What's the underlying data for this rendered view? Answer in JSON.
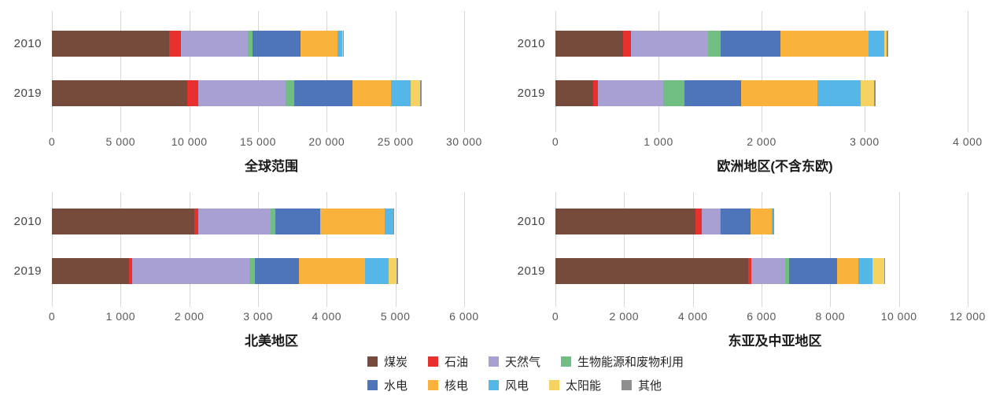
{
  "series": [
    {
      "label": "煤炭",
      "color": "#774B3B"
    },
    {
      "label": "石油",
      "color": "#E8312E"
    },
    {
      "label": "天然气",
      "color": "#A89FD3"
    },
    {
      "label": "生物能源和废物利用",
      "color": "#71BE82"
    },
    {
      "label": "水电",
      "color": "#4E74B9"
    },
    {
      "label": "核电",
      "color": "#F9B23C"
    },
    {
      "label": "风电",
      "color": "#55B6E8"
    },
    {
      "label": "太阳能",
      "color": "#F5D363"
    },
    {
      "label": "其他",
      "color": "#8F8F8F"
    }
  ],
  "legend": {
    "rows": [
      [
        0,
        1,
        2,
        3
      ],
      [
        4,
        5,
        6,
        7,
        8
      ]
    ]
  },
  "chart_data": [
    {
      "type": "bar",
      "orientation": "horizontal-stacked",
      "title": "全球范围",
      "categories": [
        "2010",
        "2019"
      ],
      "xlim": [
        0,
        30000
      ],
      "x_tick_step": 5000,
      "x_tick_labels": [
        "0",
        "5 000",
        "10 000",
        "15 000",
        "20 000",
        "25 000",
        "30 000"
      ],
      "series": [
        {
          "name": "煤炭",
          "values": [
            8550,
            9820
          ]
        },
        {
          "name": "石油",
          "values": [
            850,
            820
          ]
        },
        {
          "name": "天然气",
          "values": [
            4850,
            6350
          ]
        },
        {
          "name": "生物能源和废物利用",
          "values": [
            380,
            650
          ]
        },
        {
          "name": "水电",
          "values": [
            3450,
            4250
          ]
        },
        {
          "name": "核电",
          "values": [
            2700,
            2790
          ]
        },
        {
          "name": "风电",
          "values": [
            350,
            1420
          ]
        },
        {
          "name": "太阳能",
          "values": [
            30,
            720
          ]
        },
        {
          "name": "其他",
          "values": [
            60,
            90
          ]
        }
      ]
    },
    {
      "type": "bar",
      "orientation": "horizontal-stacked",
      "title": "欧洲地区(不含东欧)",
      "categories": [
        "2010",
        "2019"
      ],
      "xlim": [
        0,
        4000
      ],
      "x_tick_step": 1000,
      "x_tick_labels": [
        "0",
        "1 000",
        "2 000",
        "3 000",
        "4 000"
      ],
      "series": [
        {
          "name": "煤炭",
          "values": [
            660,
            365
          ]
        },
        {
          "name": "石油",
          "values": [
            70,
            50
          ]
        },
        {
          "name": "天然气",
          "values": [
            750,
            630
          ]
        },
        {
          "name": "生物能源和废物利用",
          "values": [
            120,
            210
          ]
        },
        {
          "name": "水电",
          "values": [
            580,
            545
          ]
        },
        {
          "name": "核电",
          "values": [
            860,
            745
          ]
        },
        {
          "name": "风电",
          "values": [
            150,
            420
          ]
        },
        {
          "name": "太阳能",
          "values": [
            25,
            130
          ]
        },
        {
          "name": "其他",
          "values": [
            15,
            15
          ]
        }
      ]
    },
    {
      "type": "bar",
      "orientation": "horizontal-stacked",
      "title": "北美地区",
      "categories": [
        "2010",
        "2019"
      ],
      "xlim": [
        0,
        6000
      ],
      "x_tick_step": 1000,
      "x_tick_labels": [
        "0",
        "1 000",
        "2 000",
        "3 000",
        "4 000",
        "5 000",
        "6 000"
      ],
      "series": [
        {
          "name": "煤炭",
          "values": [
            2070,
            1120
          ]
        },
        {
          "name": "石油",
          "values": [
            60,
            50
          ]
        },
        {
          "name": "天然气",
          "values": [
            1050,
            1700
          ]
        },
        {
          "name": "生物能源和废物利用",
          "values": [
            70,
            80
          ]
        },
        {
          "name": "水电",
          "values": [
            650,
            650
          ]
        },
        {
          "name": "核电",
          "values": [
            950,
            960
          ]
        },
        {
          "name": "风电",
          "values": [
            120,
            340
          ]
        },
        {
          "name": "太阳能",
          "values": [
            5,
            120
          ]
        },
        {
          "name": "其他",
          "values": [
            10,
            25
          ]
        }
      ]
    },
    {
      "type": "bar",
      "orientation": "horizontal-stacked",
      "title": "东亚及中亚地区",
      "categories": [
        "2010",
        "2019"
      ],
      "xlim": [
        0,
        12000
      ],
      "x_tick_step": 2000,
      "x_tick_labels": [
        "0",
        "2 000",
        "4 000",
        "6 000",
        "8 000",
        "10 000",
        "12 000"
      ],
      "series": [
        {
          "name": "煤炭",
          "values": [
            4080,
            5600
          ]
        },
        {
          "name": "石油",
          "values": [
            180,
            100
          ]
        },
        {
          "name": "天然气",
          "values": [
            520,
            980
          ]
        },
        {
          "name": "生物能源和废物利用",
          "values": [
            30,
            130
          ]
        },
        {
          "name": "水电",
          "values": [
            860,
            1400
          ]
        },
        {
          "name": "核电",
          "values": [
            620,
            610
          ]
        },
        {
          "name": "风电",
          "values": [
            50,
            420
          ]
        },
        {
          "name": "太阳能",
          "values": [
            10,
            340
          ]
        },
        {
          "name": "其他",
          "values": [
            10,
            20
          ]
        }
      ]
    }
  ]
}
